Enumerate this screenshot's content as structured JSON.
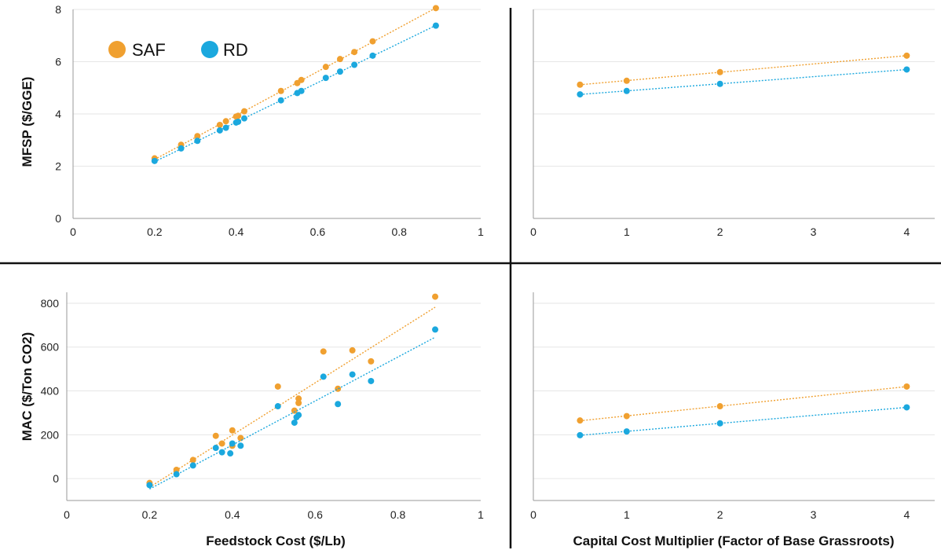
{
  "colors": {
    "SAF": "#F0A030",
    "RD": "#1BA8DE",
    "grid": "#e6e6e6",
    "axis": "#9a9a9a",
    "divider": "#111111"
  },
  "legend": [
    {
      "label": "SAF",
      "color": "#F0A030"
    },
    {
      "label": "RD",
      "color": "#1BA8DE"
    }
  ],
  "chart_data": [
    {
      "type": "scatter",
      "panel": "top-left",
      "xlabel": "",
      "ylabel": "MFSP ($/GGE)",
      "xlim": [
        0,
        1
      ],
      "ylim": [
        0,
        8
      ],
      "xticks": [
        "0",
        "0.2",
        "0.4",
        "0.6",
        "0.8",
        "1"
      ],
      "yticks": [
        "0",
        "2",
        "4",
        "6",
        "8"
      ],
      "grid": "horizontal",
      "trendline": "linear, dotted",
      "series": [
        {
          "name": "SAF",
          "x": [
            0.2,
            0.265,
            0.305,
            0.36,
            0.375,
            0.4,
            0.405,
            0.42,
            0.51,
            0.55,
            0.56,
            0.62,
            0.655,
            0.69,
            0.735,
            0.89
          ],
          "y": [
            2.3,
            2.82,
            3.15,
            3.58,
            3.72,
            3.9,
            3.93,
            4.1,
            4.88,
            5.18,
            5.3,
            5.8,
            6.1,
            6.37,
            6.78,
            8.05
          ]
        },
        {
          "name": "RD",
          "x": [
            0.2,
            0.265,
            0.305,
            0.36,
            0.375,
            0.4,
            0.405,
            0.42,
            0.51,
            0.55,
            0.56,
            0.62,
            0.655,
            0.69,
            0.735,
            0.89
          ],
          "y": [
            2.2,
            2.68,
            2.97,
            3.37,
            3.47,
            3.67,
            3.7,
            3.83,
            4.52,
            4.8,
            4.88,
            5.38,
            5.62,
            5.88,
            6.23,
            7.38
          ]
        }
      ]
    },
    {
      "type": "scatter",
      "panel": "top-right",
      "xlabel": "",
      "ylabel": "",
      "xlim": [
        0,
        4.3
      ],
      "ylim": [
        0,
        8
      ],
      "xticks": [
        "0",
        "1",
        "2",
        "3",
        "4"
      ],
      "yticks": [],
      "grid": "horizontal",
      "trendline": "linear, dotted",
      "series": [
        {
          "name": "SAF",
          "x": [
            0.5,
            1,
            2,
            4
          ],
          "y": [
            5.12,
            5.27,
            5.6,
            6.23
          ]
        },
        {
          "name": "RD",
          "x": [
            0.5,
            1,
            2,
            4
          ],
          "y": [
            4.75,
            4.88,
            5.15,
            5.7
          ]
        }
      ]
    },
    {
      "type": "scatter",
      "panel": "bottom-left",
      "xlabel": "Feedstock Cost ($/Lb)",
      "ylabel": "MAC ($/Ton CO2)",
      "xlim": [
        0,
        1
      ],
      "ylim": [
        -100,
        850
      ],
      "xticks": [
        "0",
        "0.2",
        "0.4",
        "0.6",
        "0.8",
        "1"
      ],
      "yticks": [
        "0",
        "200",
        "400",
        "600",
        "800"
      ],
      "grid": "horizontal",
      "trendline": "linear, dotted",
      "series": [
        {
          "name": "SAF",
          "x": [
            0.2,
            0.265,
            0.305,
            0.36,
            0.375,
            0.4,
            0.4,
            0.42,
            0.51,
            0.55,
            0.56,
            0.56,
            0.62,
            0.655,
            0.69,
            0.735,
            0.89
          ],
          "y": [
            -20,
            40,
            85,
            195,
            160,
            150,
            220,
            185,
            420,
            310,
            345,
            365,
            580,
            410,
            585,
            535,
            830
          ]
        },
        {
          "name": "RD",
          "x": [
            0.2,
            0.265,
            0.305,
            0.36,
            0.375,
            0.395,
            0.4,
            0.42,
            0.51,
            0.55,
            0.555,
            0.56,
            0.62,
            0.655,
            0.69,
            0.735,
            0.89
          ],
          "y": [
            -30,
            20,
            60,
            140,
            120,
            115,
            160,
            150,
            330,
            255,
            280,
            290,
            465,
            340,
            475,
            445,
            680
          ]
        }
      ]
    },
    {
      "type": "scatter",
      "panel": "bottom-right",
      "xlabel": "Capital Cost Multiplier (Factor of Base Grassroots)",
      "ylabel": "",
      "xlim": [
        0,
        4.3
      ],
      "ylim": [
        -100,
        850
      ],
      "xticks": [
        "0",
        "1",
        "2",
        "3",
        "4"
      ],
      "yticks": [],
      "grid": "horizontal",
      "trendline": "linear, dotted",
      "series": [
        {
          "name": "SAF",
          "x": [
            0.5,
            1,
            2,
            4
          ],
          "y": [
            265,
            285,
            330,
            420
          ]
        },
        {
          "name": "RD",
          "x": [
            0.5,
            1,
            2,
            4
          ],
          "y": [
            198,
            215,
            252,
            325
          ]
        }
      ]
    }
  ]
}
